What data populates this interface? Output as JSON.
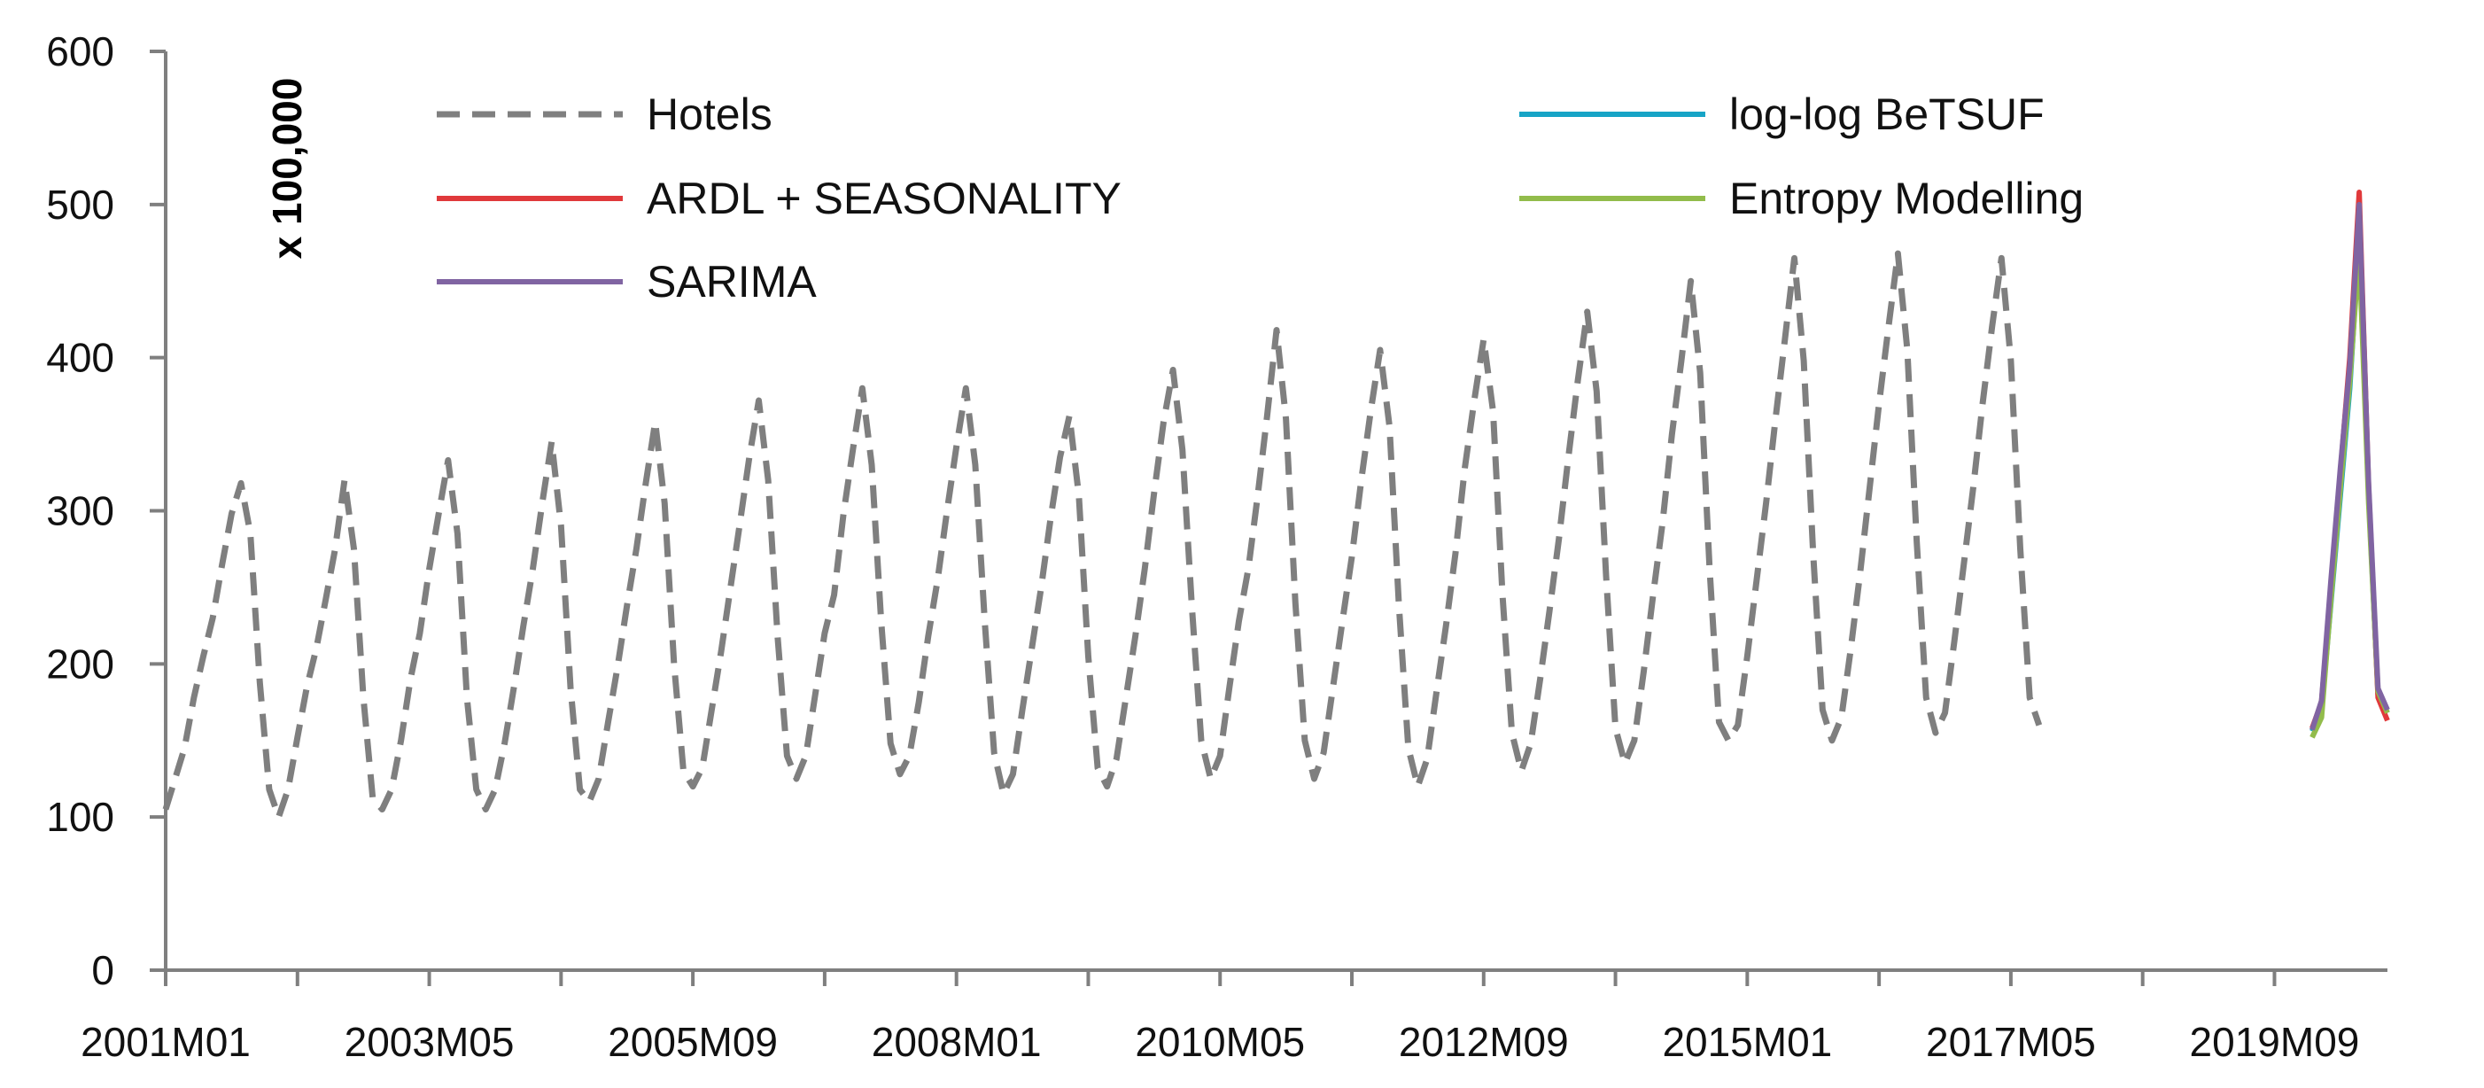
{
  "chart_data": {
    "type": "line",
    "title": "",
    "xlabel": "",
    "ylabel": "",
    "y_unit_label": "x 100,000",
    "ylim": [
      0,
      600
    ],
    "yticks": [
      0,
      100,
      200,
      300,
      400,
      500,
      600
    ],
    "start_month": "2001M01",
    "n_months": 237,
    "xtick_labels": [
      "2001M01",
      "2003M05",
      "2005M09",
      "2008M01",
      "2010M05",
      "2012M09",
      "2015M01",
      "2017M05",
      "2019M09"
    ],
    "xtick_label_index_step": 28,
    "xtick_minor_index_step": 14,
    "legend_position": "top",
    "series": [
      {
        "name": "Hotels",
        "color": "#7f7f7f",
        "style": "dashed",
        "start_index": 0,
        "values": [
          105,
          125,
          145,
          178,
          205,
          230,
          265,
          298,
          318,
          285,
          188,
          118,
          100,
          118,
          152,
          185,
          210,
          242,
          275,
          320,
          275,
          178,
          112,
          105,
          118,
          150,
          190,
          220,
          262,
          298,
          333,
          285,
          178,
          118,
          105,
          118,
          148,
          185,
          225,
          262,
          305,
          345,
          290,
          185,
          118,
          110,
          125,
          162,
          198,
          238,
          275,
          318,
          358,
          305,
          200,
          130,
          120,
          132,
          170,
          208,
          250,
          292,
          335,
          372,
          320,
          218,
          140,
          125,
          140,
          180,
          220,
          245,
          298,
          340,
          380,
          330,
          228,
          148,
          128,
          140,
          175,
          218,
          255,
          300,
          342,
          380,
          330,
          228,
          142,
          115,
          128,
          170,
          210,
          250,
          295,
          335,
          362,
          310,
          205,
          132,
          120,
          138,
          178,
          218,
          262,
          312,
          358,
          392,
          340,
          238,
          150,
          125,
          140,
          185,
          228,
          262,
          310,
          362,
          418,
          360,
          240,
          150,
          125,
          142,
          185,
          228,
          270,
          320,
          365,
          405,
          355,
          238,
          145,
          120,
          138,
          182,
          225,
          272,
          328,
          372,
          412,
          365,
          245,
          155,
          130,
          148,
          190,
          235,
          282,
          335,
          385,
          430,
          378,
          258,
          158,
          135,
          150,
          195,
          245,
          292,
          350,
          398,
          450,
          390,
          262,
          162,
          150,
          160,
          205,
          255,
          305,
          360,
          412,
          465,
          398,
          272,
          170,
          150,
          165,
          210,
          260,
          315,
          370,
          420,
          468,
          405,
          280,
          178,
          155,
          168,
          215,
          265,
          315,
          370,
          420,
          465,
          398,
          275,
          178,
          160
        ]
      },
      {
        "name": "log-log BeTSUF",
        "color": "#17a4c6",
        "style": "solid",
        "start_index": 228,
        "values": [
          156,
          170,
          240,
          310,
          380,
          480,
          310,
          180,
          168
        ]
      },
      {
        "name": "ARDL + SEASONALITY",
        "color": "#e0393b",
        "style": "solid",
        "start_index": 228,
        "values": [
          158,
          175,
          250,
          325,
          400,
          508,
          315,
          178,
          163
        ]
      },
      {
        "name": "Entropy Modelling",
        "color": "#92bc4b",
        "style": "solid",
        "start_index": 228,
        "values": [
          152,
          165,
          242,
          315,
          385,
          470,
          305,
          182,
          168
        ]
      },
      {
        "name": "SARIMA",
        "color": "#8064a2",
        "style": "solid",
        "start_index": 228,
        "values": [
          157,
          176,
          255,
          328,
          395,
          500,
          318,
          184,
          170
        ]
      }
    ]
  }
}
